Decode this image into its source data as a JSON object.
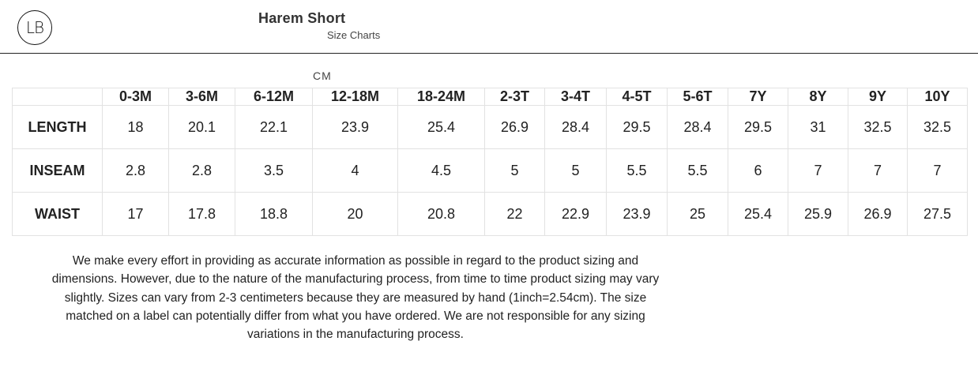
{
  "brand": {
    "logo_text": "LB"
  },
  "header": {
    "title": "Harem Short",
    "subtitle": "Size Charts"
  },
  "unit_label": "CM",
  "table": {
    "columns": [
      "",
      "0-3M",
      "3-6M",
      "6-12M",
      "12-18M",
      "18-24M",
      "2-3T",
      "3-4T",
      "4-5T",
      "5-6T",
      "7Y",
      "8Y",
      "9Y",
      "10Y"
    ],
    "rows": [
      {
        "label": "LENGTH",
        "values": [
          "18",
          "20.1",
          "22.1",
          "23.9",
          "25.4",
          "26.9",
          "28.4",
          "29.5",
          "28.4",
          "29.5",
          "31",
          "32.5",
          "32.5"
        ]
      },
      {
        "label": "INSEAM",
        "values": [
          "2.8",
          "2.8",
          "3.5",
          "4",
          "4.5",
          "5",
          "5",
          "5.5",
          "5.5",
          "6",
          "7",
          "7",
          "7"
        ]
      },
      {
        "label": "WAIST",
        "values": [
          "17",
          "17.8",
          "18.8",
          "20",
          "20.8",
          "22",
          "22.9",
          "23.9",
          "25",
          "25.4",
          "25.9",
          "26.9",
          "27.5"
        ]
      }
    ]
  },
  "disclaimer": {
    "lines": [
      "We make every effort in providing as accurate information as possible in regard to the product sizing and",
      "dimensions. However, due to the nature of the manufacturing process, from time to time product sizing may vary",
      "slightly. Sizes can vary from 2-3 centimeters because they are measured by hand (1inch=2.54cm). The size",
      "matched on a label can potentially differ from what you have ordered. We are not responsible for any sizing",
      "variations in the manufacturing process."
    ]
  }
}
